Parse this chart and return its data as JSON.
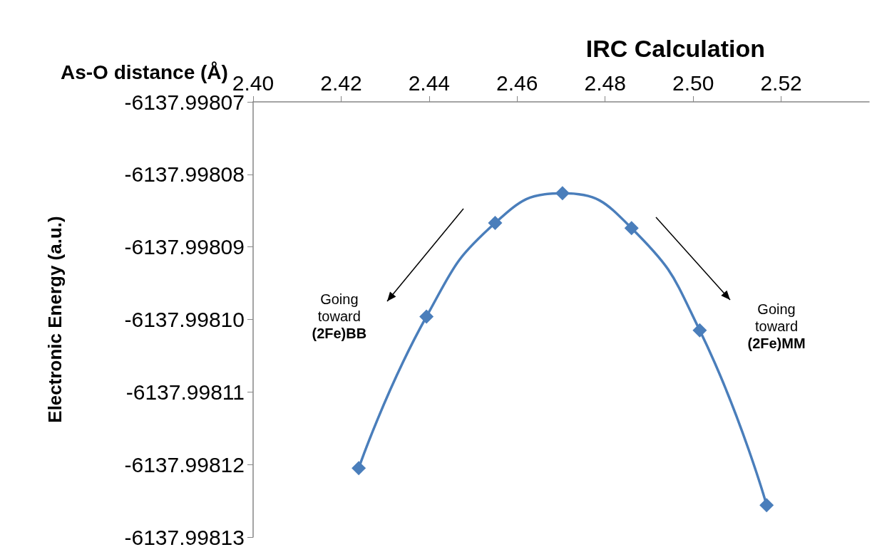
{
  "chart_data": {
    "type": "line",
    "title": "IRC Calculation",
    "xlabel": "As-O distance (Å)",
    "ylabel": "Electronic Energy (a.u.)",
    "x": [
      2.424,
      2.4394,
      2.455,
      2.4703,
      2.486,
      2.5015,
      2.5167
    ],
    "series": [
      {
        "color": "#4a7ebb",
        "values": [
          -6137.9981205,
          -6137.9980996,
          -6137.9980867,
          -6137.9980826,
          -6137.9980874,
          -6137.9981015,
          -6137.9981256
        ]
      }
    ],
    "xlim": [
      2.4,
      2.54
    ],
    "xticks": [
      {
        "value": 2.4,
        "label": "2.40"
      },
      {
        "value": 2.42,
        "label": "2.42"
      },
      {
        "value": 2.44,
        "label": "2.44"
      },
      {
        "value": 2.46,
        "label": "2.46"
      },
      {
        "value": 2.48,
        "label": "2.48"
      },
      {
        "value": 2.5,
        "label": "2.50"
      },
      {
        "value": 2.52,
        "label": "2.52"
      }
    ],
    "ylim": [
      -6137.99813,
      -6137.99807
    ],
    "yticks": [
      -6137.99807,
      -6137.99808,
      -6137.99809,
      {
        "value": -6137.9981,
        "label": "-6137.99810"
      },
      -6137.99811,
      -6137.99812,
      -6137.99813
    ],
    "marker": "diamond",
    "line_style": "solid",
    "grid": false,
    "annotations": [
      "Going toward (2Fe)BB",
      "Going toward (2Fe)MM"
    ]
  }
}
